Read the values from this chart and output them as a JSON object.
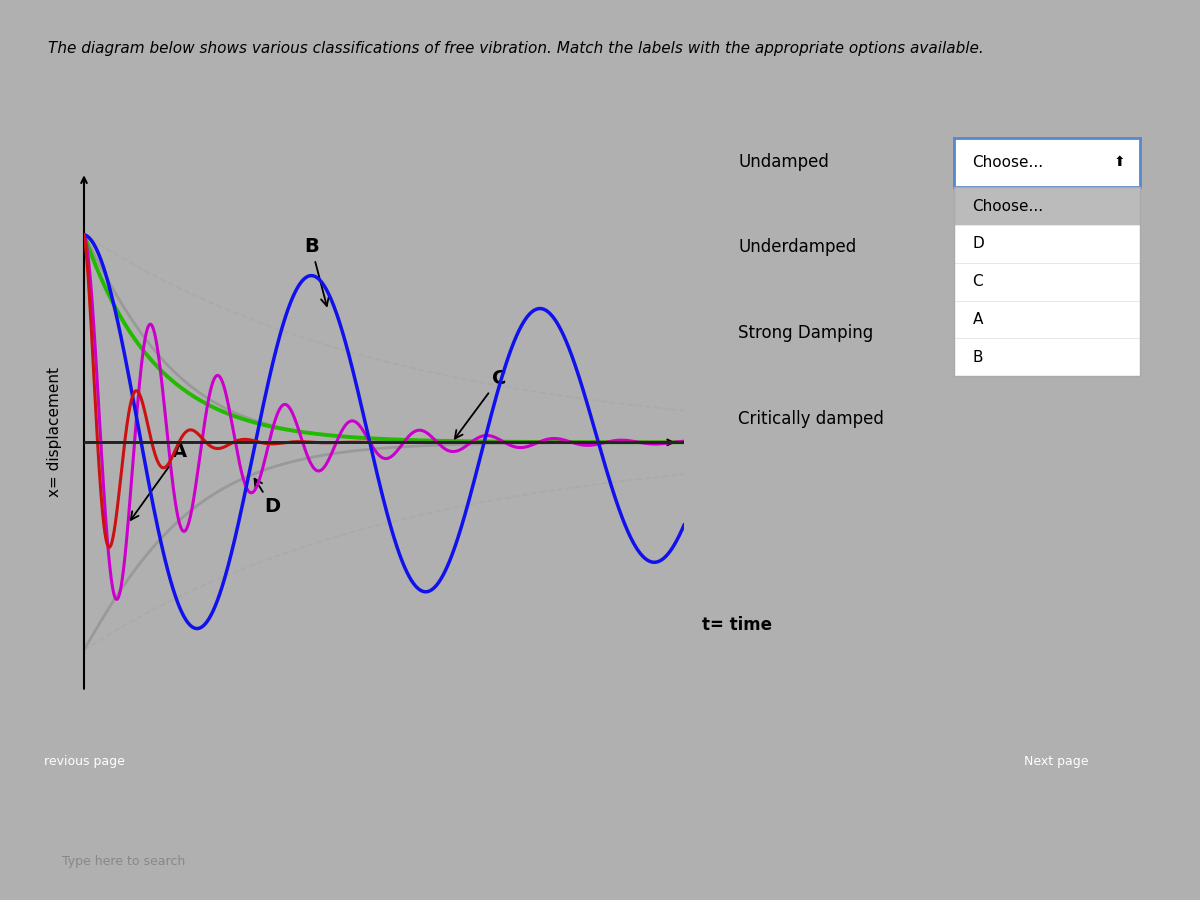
{
  "title": "The diagram below shows various classifications of free vibration. Match the labels with the appropriate options available.",
  "xlabel": "t= time",
  "ylabel": "x= displacement",
  "outer_bg": "#b0b0b0",
  "inner_bg": "#c8c8c8",
  "plot_bg": "#d0d0d0",
  "curve_A": {
    "color": "#cc00cc",
    "zeta": 0.09,
    "omega": 7.5
  },
  "curve_B": {
    "color": "#1111ee",
    "zeta": 0.035,
    "omega": 2.2
  },
  "curve_C": {
    "color": "#cc1111",
    "zeta": 0.22,
    "omega": 9.5
  },
  "curve_D_color": "#999999",
  "curve_green": "#22bb00",
  "curve_gray_env": "#aaaaaa",
  "t_max": 7.5,
  "right_panel": {
    "labels": [
      "Undamped",
      "Underdamped",
      "Strong Damping",
      "Critically damped"
    ],
    "dropdown1_text": "Choose...",
    "dropdown2_items": [
      "Choose...",
      "D",
      "C",
      "A",
      "B"
    ]
  },
  "btn_prev_color": "#5a8a5a",
  "btn_next_color": "#3355bb",
  "taskbar_color": "#111122",
  "dark_bottom": "#222222"
}
